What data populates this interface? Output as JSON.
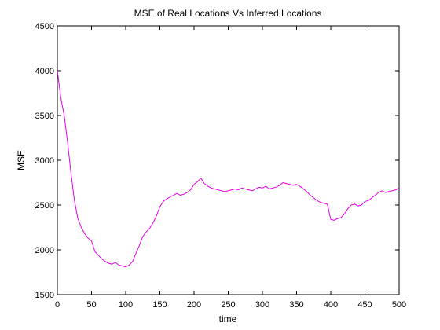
{
  "chart_data": {
    "type": "line",
    "title": "MSE of Real Locations Vs Inferred Locations",
    "xlabel": "time",
    "ylabel": "MSE",
    "xlim": [
      0,
      500
    ],
    "ylim": [
      1500,
      4500
    ],
    "x_ticks": [
      "0",
      "50",
      "100",
      "150",
      "200",
      "250",
      "300",
      "350",
      "400",
      "450",
      "500"
    ],
    "y_ticks": [
      "1500",
      "2000",
      "2500",
      "3000",
      "3500",
      "4000",
      "4500"
    ],
    "grid": false,
    "legend": "none",
    "series": [
      {
        "color": "#e600e6",
        "x": [
          0,
          5,
          10,
          15,
          20,
          25,
          30,
          35,
          40,
          45,
          50,
          55,
          60,
          65,
          70,
          75,
          80,
          85,
          90,
          95,
          100,
          105,
          110,
          115,
          120,
          125,
          130,
          135,
          140,
          145,
          150,
          155,
          160,
          165,
          170,
          175,
          180,
          185,
          190,
          195,
          200,
          205,
          210,
          215,
          220,
          225,
          230,
          235,
          240,
          245,
          250,
          255,
          260,
          265,
          270,
          275,
          280,
          285,
          290,
          295,
          300,
          305,
          310,
          315,
          320,
          325,
          330,
          335,
          340,
          345,
          350,
          355,
          360,
          365,
          370,
          375,
          380,
          385,
          390,
          395,
          400,
          405,
          410,
          415,
          420,
          425,
          430,
          435,
          440,
          445,
          450,
          455,
          460,
          465,
          470,
          475,
          480,
          485,
          490,
          495,
          500
        ],
        "y": [
          4000,
          3700,
          3500,
          3200,
          2850,
          2550,
          2350,
          2250,
          2180,
          2130,
          2100,
          1980,
          1940,
          1900,
          1870,
          1850,
          1840,
          1860,
          1830,
          1820,
          1810,
          1830,
          1870,
          1960,
          2050,
          2150,
          2200,
          2240,
          2300,
          2380,
          2480,
          2540,
          2570,
          2590,
          2610,
          2630,
          2610,
          2620,
          2640,
          2670,
          2730,
          2760,
          2800,
          2740,
          2710,
          2690,
          2680,
          2670,
          2660,
          2650,
          2660,
          2670,
          2680,
          2670,
          2690,
          2680,
          2670,
          2660,
          2680,
          2700,
          2690,
          2710,
          2680,
          2690,
          2700,
          2720,
          2750,
          2740,
          2730,
          2720,
          2730,
          2710,
          2680,
          2650,
          2610,
          2580,
          2550,
          2530,
          2520,
          2510,
          2340,
          2330,
          2350,
          2360,
          2400,
          2460,
          2500,
          2510,
          2490,
          2500,
          2540,
          2550,
          2580,
          2610,
          2640,
          2660,
          2640,
          2650,
          2660,
          2670,
          2690
        ]
      }
    ]
  }
}
